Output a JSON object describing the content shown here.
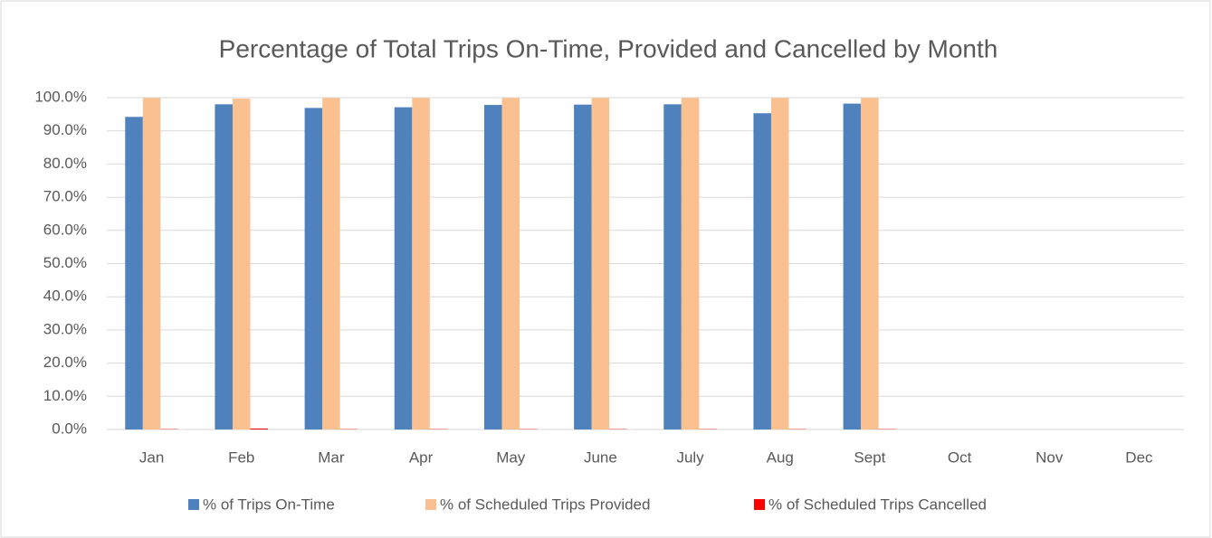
{
  "chart_data": {
    "type": "bar",
    "title": "Percentage of Total Trips On-Time, Provided and Cancelled by Month",
    "categories": [
      "Jan",
      "Feb",
      "Mar",
      "Apr",
      "May",
      "June",
      "July",
      "Aug",
      "Sept",
      "Oct",
      "Nov",
      "Dec"
    ],
    "series": [
      {
        "name": "% of Trips On-Time",
        "color": "#4f81bd",
        "values": [
          94.2,
          98.0,
          96.9,
          97.1,
          97.8,
          97.9,
          98.0,
          95.3,
          98.2,
          null,
          null,
          null
        ]
      },
      {
        "name": "% of Scheduled Trips Provided",
        "color": "#fac090",
        "values": [
          99.9,
          99.7,
          99.9,
          99.9,
          99.9,
          99.9,
          99.9,
          99.9,
          99.9,
          null,
          null,
          null
        ]
      },
      {
        "name": "% of Scheduled Trips Cancelled",
        "color": "#ff0000",
        "values": [
          0.1,
          0.3,
          0.1,
          0.1,
          0.1,
          0.1,
          0.1,
          0.1,
          0.1,
          null,
          null,
          null
        ]
      }
    ],
    "ylim": [
      0,
      100
    ],
    "yticks": [
      {
        "value": 0,
        "label": "0.0%"
      },
      {
        "value": 10,
        "label": "10.0%"
      },
      {
        "value": 20,
        "label": "20.0%"
      },
      {
        "value": 30,
        "label": "30.0%"
      },
      {
        "value": 40,
        "label": "40.0%"
      },
      {
        "value": 50,
        "label": "50.0%"
      },
      {
        "value": 60,
        "label": "60.0%"
      },
      {
        "value": 70,
        "label": "70.0%"
      },
      {
        "value": 80,
        "label": "80.0%"
      },
      {
        "value": 90,
        "label": "90.0%"
      },
      {
        "value": 100,
        "label": "100.0%"
      }
    ],
    "grid": true,
    "legend": "bottom"
  }
}
